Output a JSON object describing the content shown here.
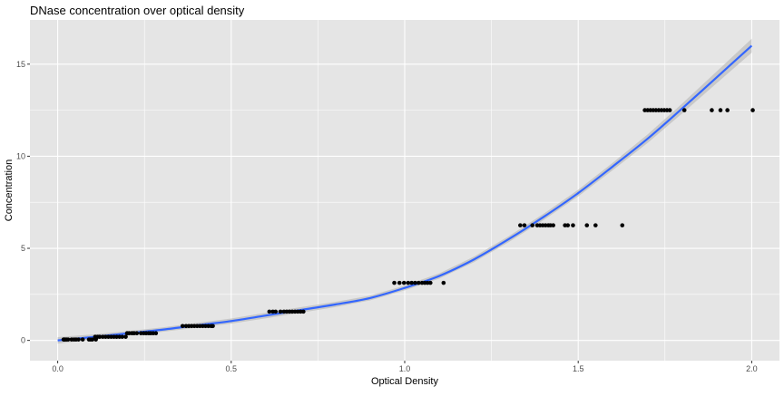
{
  "chart_data": {
    "type": "scatter",
    "title": "DNase concentration over optical density",
    "xlabel": "Optical Density",
    "ylabel": "Concentration",
    "xlim": [
      -0.08,
      2.08
    ],
    "ylim": [
      -1.1,
      17.4
    ],
    "x_ticks": [
      0.0,
      0.5,
      1.0,
      1.5,
      2.0
    ],
    "x_tick_labels": [
      "0.0",
      "0.5",
      "1.0",
      "1.5",
      "2.0"
    ],
    "y_ticks": [
      0,
      5,
      10,
      15
    ],
    "y_tick_labels": [
      "0",
      "5",
      "10",
      "15"
    ],
    "grid": true,
    "background_color": "#e5e5e5",
    "grid_color": "#ffffff",
    "point_color": "#000000",
    "line_color": "#3366ff",
    "ribbon_color": "#bdbdbd",
    "points": [
      [
        0.017,
        0.049
      ],
      [
        0.018,
        0.049
      ],
      [
        0.021,
        0.049
      ],
      [
        0.025,
        0.049
      ],
      [
        0.03,
        0.049
      ],
      [
        0.04,
        0.049
      ],
      [
        0.047,
        0.049
      ],
      [
        0.053,
        0.049
      ],
      [
        0.06,
        0.049
      ],
      [
        0.072,
        0.049
      ],
      [
        0.09,
        0.049
      ],
      [
        0.095,
        0.049
      ],
      [
        0.1,
        0.049
      ],
      [
        0.11,
        0.049
      ],
      [
        0.108,
        0.195
      ],
      [
        0.115,
        0.195
      ],
      [
        0.121,
        0.195
      ],
      [
        0.13,
        0.195
      ],
      [
        0.138,
        0.195
      ],
      [
        0.146,
        0.195
      ],
      [
        0.154,
        0.195
      ],
      [
        0.162,
        0.195
      ],
      [
        0.17,
        0.195
      ],
      [
        0.178,
        0.195
      ],
      [
        0.186,
        0.195
      ],
      [
        0.196,
        0.195
      ],
      [
        0.2,
        0.391
      ],
      [
        0.206,
        0.391
      ],
      [
        0.214,
        0.391
      ],
      [
        0.22,
        0.391
      ],
      [
        0.228,
        0.391
      ],
      [
        0.24,
        0.391
      ],
      [
        0.248,
        0.391
      ],
      [
        0.255,
        0.391
      ],
      [
        0.262,
        0.391
      ],
      [
        0.268,
        0.391
      ],
      [
        0.275,
        0.391
      ],
      [
        0.283,
        0.391
      ],
      [
        0.36,
        0.781
      ],
      [
        0.37,
        0.781
      ],
      [
        0.378,
        0.781
      ],
      [
        0.386,
        0.781
      ],
      [
        0.394,
        0.781
      ],
      [
        0.402,
        0.781
      ],
      [
        0.41,
        0.781
      ],
      [
        0.418,
        0.781
      ],
      [
        0.426,
        0.781
      ],
      [
        0.434,
        0.781
      ],
      [
        0.442,
        0.781
      ],
      [
        0.447,
        0.781
      ],
      [
        0.61,
        1.563
      ],
      [
        0.62,
        1.563
      ],
      [
        0.628,
        1.563
      ],
      [
        0.642,
        1.563
      ],
      [
        0.652,
        1.563
      ],
      [
        0.66,
        1.563
      ],
      [
        0.668,
        1.563
      ],
      [
        0.676,
        1.563
      ],
      [
        0.684,
        1.563
      ],
      [
        0.692,
        1.563
      ],
      [
        0.7,
        1.563
      ],
      [
        0.708,
        1.563
      ],
      [
        0.97,
        3.125
      ],
      [
        0.985,
        3.125
      ],
      [
        0.998,
        3.125
      ],
      [
        1.01,
        3.125
      ],
      [
        1.02,
        3.125
      ],
      [
        1.03,
        3.125
      ],
      [
        1.04,
        3.125
      ],
      [
        1.05,
        3.125
      ],
      [
        1.058,
        3.125
      ],
      [
        1.066,
        3.125
      ],
      [
        1.074,
        3.125
      ],
      [
        1.112,
        3.125
      ],
      [
        1.333,
        6.25
      ],
      [
        1.345,
        6.25
      ],
      [
        1.368,
        6.25
      ],
      [
        1.382,
        6.25
      ],
      [
        1.39,
        6.25
      ],
      [
        1.398,
        6.25
      ],
      [
        1.406,
        6.25
      ],
      [
        1.414,
        6.25
      ],
      [
        1.42,
        6.25
      ],
      [
        1.428,
        6.25
      ],
      [
        1.462,
        6.25
      ],
      [
        1.47,
        6.25
      ],
      [
        1.485,
        6.25
      ],
      [
        1.525,
        6.25
      ],
      [
        1.55,
        6.25
      ],
      [
        1.627,
        6.25
      ],
      [
        1.692,
        12.5
      ],
      [
        1.7,
        12.5
      ],
      [
        1.708,
        12.5
      ],
      [
        1.716,
        12.5
      ],
      [
        1.724,
        12.5
      ],
      [
        1.732,
        12.5
      ],
      [
        1.74,
        12.5
      ],
      [
        1.748,
        12.5
      ],
      [
        1.756,
        12.5
      ],
      [
        1.764,
        12.5
      ],
      [
        1.806,
        12.5
      ],
      [
        1.885,
        12.5
      ],
      [
        1.91,
        12.5
      ],
      [
        1.93,
        12.5
      ],
      [
        2.003,
        12.5
      ]
    ],
    "smooth_line": [
      [
        0.0,
        0.0
      ],
      [
        0.1,
        0.18
      ],
      [
        0.2,
        0.38
      ],
      [
        0.3,
        0.58
      ],
      [
        0.4,
        0.82
      ],
      [
        0.5,
        1.05
      ],
      [
        0.6,
        1.35
      ],
      [
        0.7,
        1.65
      ],
      [
        0.8,
        1.95
      ],
      [
        0.9,
        2.3
      ],
      [
        1.0,
        2.85
      ],
      [
        1.1,
        3.5
      ],
      [
        1.2,
        4.4
      ],
      [
        1.3,
        5.5
      ],
      [
        1.4,
        6.7
      ],
      [
        1.5,
        8.0
      ],
      [
        1.6,
        9.45
      ],
      [
        1.7,
        10.95
      ],
      [
        1.8,
        12.6
      ],
      [
        1.9,
        14.3
      ],
      [
        2.0,
        16.0
      ]
    ],
    "ribbon_halfwidth": [
      0.18,
      0.14,
      0.12,
      0.12,
      0.13,
      0.14,
      0.15,
      0.15,
      0.14,
      0.13,
      0.13,
      0.14,
      0.15,
      0.16,
      0.17,
      0.18,
      0.2,
      0.23,
      0.27,
      0.32,
      0.38
    ]
  }
}
